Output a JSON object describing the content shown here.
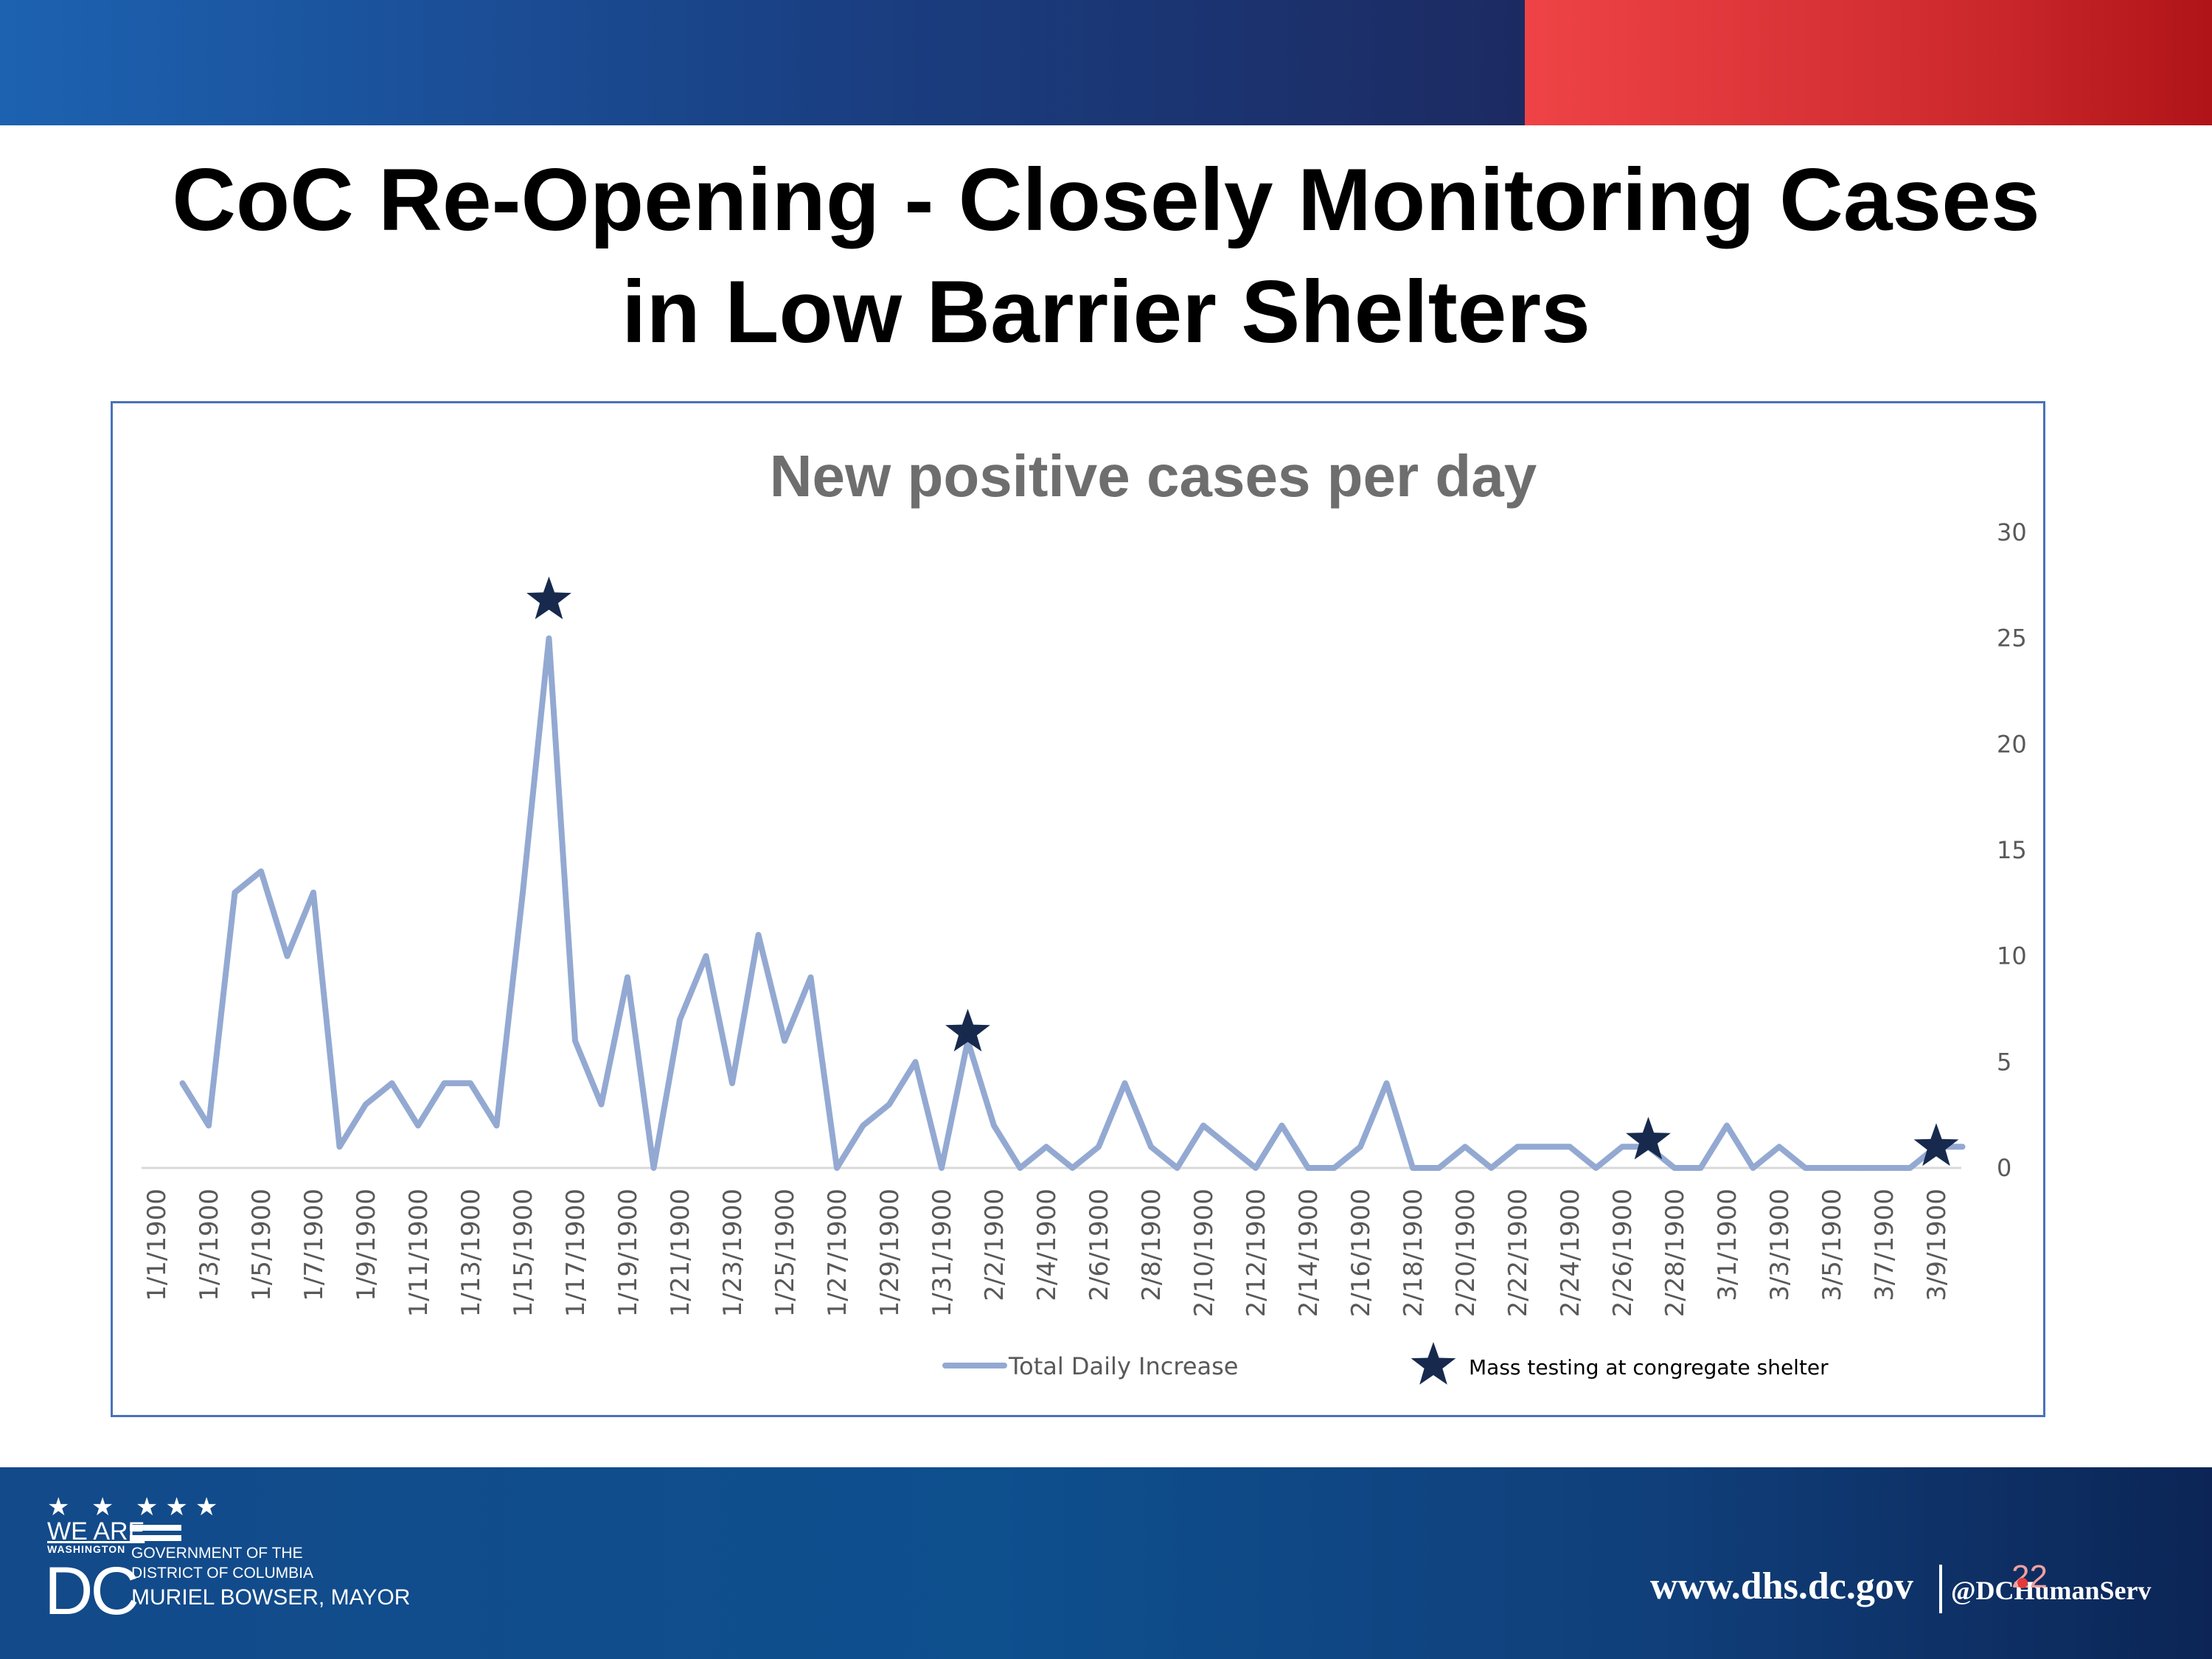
{
  "header": {
    "title_line1": "CoC Re-Opening - Closely Monitoring Cases",
    "title_line2": "in Low Barrier Shelters",
    "accent_blue": "#1c3f82",
    "accent_red": "#d02c30"
  },
  "chart_data": {
    "type": "line",
    "title": "New positive cases per day",
    "xlabel": "",
    "ylabel": "",
    "ylim": [
      0,
      30
    ],
    "yticks": [
      "0",
      "5",
      "10",
      "15",
      "20",
      "25",
      "30"
    ],
    "y_axis_side": "right",
    "grid": false,
    "x": [
      "1/1/1900",
      "1/2/1900",
      "1/3/1900",
      "1/4/1900",
      "1/5/1900",
      "1/6/1900",
      "1/7/1900",
      "1/8/1900",
      "1/9/1900",
      "1/10/1900",
      "1/11/1900",
      "1/12/1900",
      "1/13/1900",
      "1/14/1900",
      "1/15/1900",
      "1/16/1900",
      "1/17/1900",
      "1/18/1900",
      "1/19/1900",
      "1/20/1900",
      "1/21/1900",
      "1/22/1900",
      "1/23/1900",
      "1/24/1900",
      "1/25/1900",
      "1/26/1900",
      "1/27/1900",
      "1/28/1900",
      "1/29/1900",
      "1/30/1900",
      "1/31/1900",
      "2/1/1900",
      "2/2/1900",
      "2/3/1900",
      "2/4/1900",
      "2/5/1900",
      "2/6/1900",
      "2/7/1900",
      "2/8/1900",
      "2/9/1900",
      "2/10/1900",
      "2/11/1900",
      "2/12/1900",
      "2/13/1900",
      "2/14/1900",
      "2/15/1900",
      "2/16/1900",
      "2/17/1900",
      "2/18/1900",
      "2/19/1900",
      "2/20/1900",
      "2/21/1900",
      "2/22/1900",
      "2/23/1900",
      "2/24/1900",
      "2/25/1900",
      "2/26/1900",
      "2/27/1900",
      "2/28/1900",
      "2/29/1900",
      "3/1/1900",
      "3/2/1900",
      "3/3/1900",
      "3/4/1900",
      "3/5/1900",
      "3/6/1900",
      "3/7/1900",
      "3/8/1900",
      "3/9/1900",
      "3/10/1900"
    ],
    "tick_labels": [
      "1/1/1900",
      "1/3/1900",
      "1/5/1900",
      "1/7/1900",
      "1/9/1900",
      "1/11/1900",
      "1/13/1900",
      "1/15/1900",
      "1/17/1900",
      "1/19/1900",
      "1/21/1900",
      "1/23/1900",
      "1/25/1900",
      "1/27/1900",
      "1/29/1900",
      "1/31/1900",
      "2/2/1900",
      "2/4/1900",
      "2/6/1900",
      "2/8/1900",
      "2/10/1900",
      "2/12/1900",
      "2/14/1900",
      "2/16/1900",
      "2/18/1900",
      "2/20/1900",
      "2/22/1900",
      "2/24/1900",
      "2/26/1900",
      "2/28/1900",
      "3/1/1900",
      "3/3/1900",
      "3/5/1900",
      "3/7/1900",
      "3/9/1900"
    ],
    "series": [
      {
        "name": "Total Daily Increase",
        "color": "#93a9d2",
        "values": [
          null,
          4,
          2,
          13,
          14,
          10,
          13,
          1,
          3,
          4,
          2,
          4,
          4,
          2,
          13,
          25,
          6,
          3,
          9,
          0,
          7,
          10,
          4,
          11,
          6,
          9,
          0,
          2,
          3,
          5,
          0,
          6,
          2,
          0,
          1,
          0,
          1,
          4,
          1,
          0,
          2,
          1,
          0,
          2,
          0,
          0,
          1,
          4,
          0,
          0,
          1,
          0,
          1,
          1,
          1,
          0,
          1,
          1,
          0,
          0,
          2,
          0,
          1,
          0,
          0,
          0,
          0,
          0,
          1,
          1
        ]
      }
    ],
    "markers": {
      "name": "Mass testing at congregate shelter",
      "color": "#172a4d",
      "points": [
        {
          "x": "1/16/1900",
          "y": 26.8
        },
        {
          "x": "2/1/1900",
          "y": 6.4
        },
        {
          "x": "2/27/1900",
          "y": 1.3
        },
        {
          "x": "3/9/1900",
          "y": 1.0
        }
      ]
    },
    "legend": [
      {
        "label": "Total Daily Increase",
        "type": "line"
      },
      {
        "label": "Mass testing at congregate shelter",
        "type": "star"
      }
    ],
    "legend_position": "bottom"
  },
  "footer": {
    "logo_stars": "★ ★ ★★★",
    "logo_we_are": "WE ARE",
    "logo_washington": "WASHINGTON",
    "logo_dc": "DC",
    "gov_line1": "GOVERNMENT OF THE",
    "gov_line2": "DISTRICT OF COLUMBIA",
    "mayor": "MURIEL BOWSER, MAYOR",
    "url": "www.dhs.dc.gov",
    "handle": "@DCHumanServ",
    "page_number": "22"
  }
}
